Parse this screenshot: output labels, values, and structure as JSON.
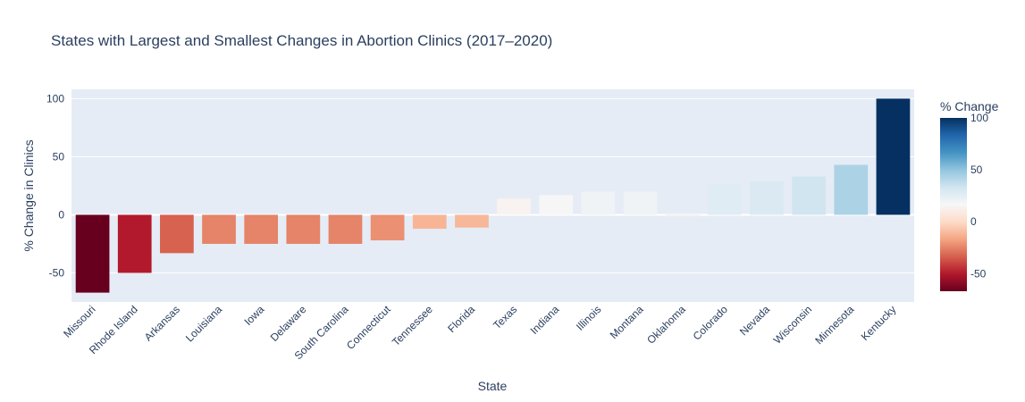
{
  "chart_data": {
    "type": "bar",
    "title": "States with Largest and Smallest Changes in Abortion Clinics (2017–2020)",
    "xlabel": "State",
    "ylabel": "% Change in Clinics",
    "ylim": [
      -75,
      108
    ],
    "yticks": [
      -50,
      0,
      50,
      100
    ],
    "grid": true,
    "categories": [
      "Missouri",
      "Rhode Island",
      "Arkansas",
      "Louisiana",
      "Iowa",
      "Delaware",
      "South Carolina",
      "Connecticut",
      "Tennessee",
      "Florida",
      "Texas",
      "Indiana",
      "Illinois",
      "Montana",
      "Oklahoma",
      "Colorado",
      "Nevada",
      "Wisconsin",
      "Minnesota",
      "Kentucky"
    ],
    "values": [
      -67,
      -50,
      -33,
      -25,
      -25,
      -25,
      -25,
      -22,
      -12,
      -11,
      14,
      17,
      20,
      20,
      0,
      27,
      29,
      33,
      43,
      100
    ],
    "colorscale": "RdBu",
    "colorbar": {
      "title": "% Change",
      "range": [
        -67,
        100
      ],
      "ticks": [
        -50,
        0,
        50,
        100
      ]
    },
    "colors": {
      "plot_bg": "#e5ecf6",
      "grid": "#ffffff",
      "text": "#2a3f5f"
    }
  }
}
